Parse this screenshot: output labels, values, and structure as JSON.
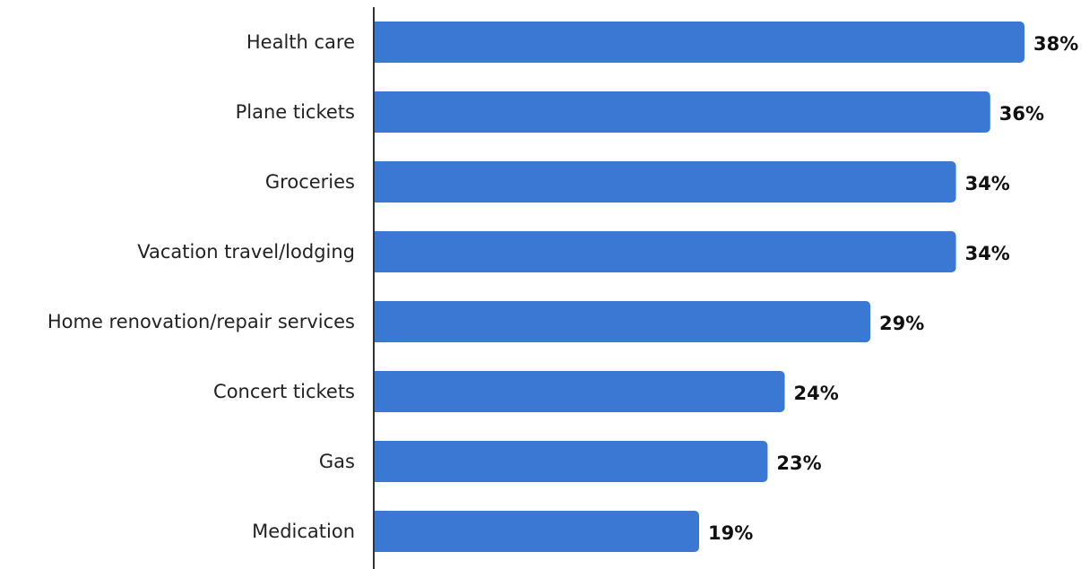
{
  "chart_data": {
    "type": "bar",
    "orientation": "horizontal",
    "categories": [
      "Health care",
      "Plane tickets",
      "Groceries",
      "Vacation travel/lodging",
      "Home renovation/repair services",
      "Concert tickets",
      "Gas",
      "Medication"
    ],
    "values": [
      38,
      36,
      34,
      34,
      29,
      24,
      23,
      19
    ],
    "value_labels": [
      "38%",
      "36%",
      "34%",
      "34%",
      "29%",
      "24%",
      "23%",
      "19%"
    ],
    "unit": "%",
    "title": "",
    "xlabel": "",
    "ylabel": "",
    "xlim": [
      0,
      38
    ],
    "grid": false,
    "legend": "none",
    "bar_color": "#3a78d4",
    "axis_color": "#333333"
  }
}
